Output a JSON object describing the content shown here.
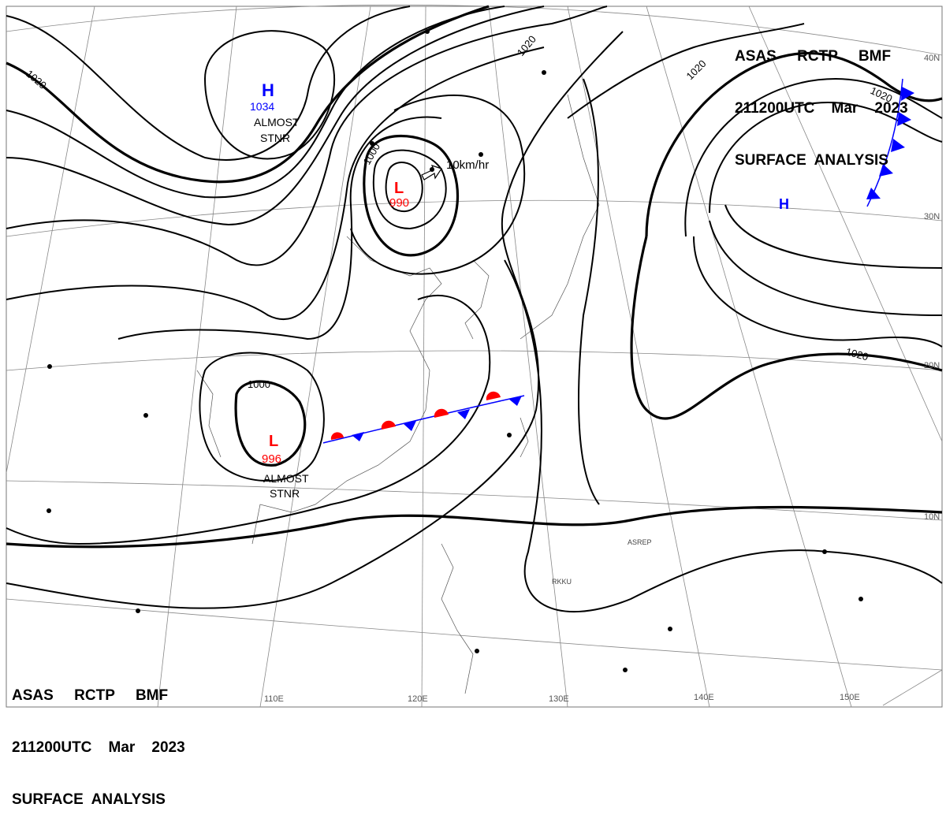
{
  "header_top": {
    "line1": "ASAS     RCTP     BMF",
    "line2": "211200UTC    Mar    2023",
    "line3": "SURFACE  ANALYSIS"
  },
  "header_bottom": {
    "line1": "ASAS     RCTP     BMF",
    "line2": "211200UTC    Mar    2023",
    "line3": "SURFACE  ANALYSIS"
  },
  "lat_labels": [
    "40N",
    "30N",
    "20N",
    "10N"
  ],
  "lon_labels": [
    "110E",
    "120E",
    "130E",
    "140E",
    "150E"
  ],
  "pressure_centers": [
    {
      "type": "H",
      "value": "1034",
      "note1": "ALMOST",
      "note2": "STNR",
      "color": "#0000ff"
    },
    {
      "type": "L",
      "value": "990",
      "motion": "10km/hr",
      "color": "#ff0000"
    },
    {
      "type": "L",
      "value": "996",
      "note1": "ALMOST",
      "note2": "STNR",
      "color": "#ff0000"
    },
    {
      "type": "H",
      "color": "#0000ff"
    }
  ],
  "isobar_labels": [
    "1020",
    "1020",
    "1020",
    "1020",
    "1020",
    "1000",
    "1000"
  ],
  "station_labels": [
    "ASREP",
    "RKKU"
  ],
  "colors": {
    "front_cold": "#0000ff",
    "front_warm": "#ff0000"
  }
}
